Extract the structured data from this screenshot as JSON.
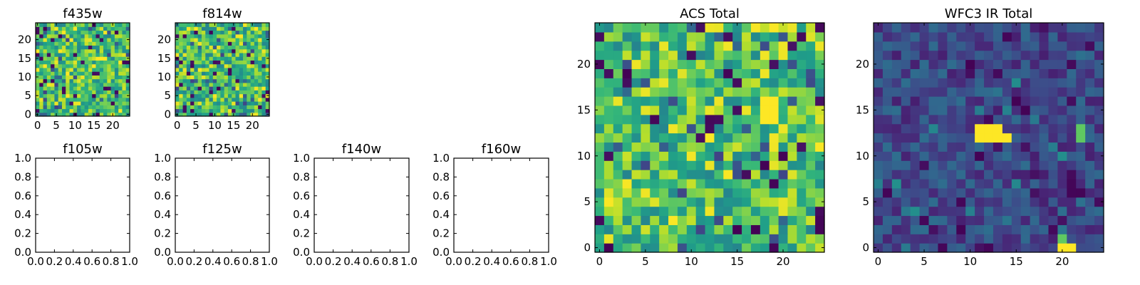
{
  "chart_data": [
    {
      "type": "heatmap",
      "title": "f435w",
      "grid_size": 25,
      "xlim": [
        -0.5,
        24.5
      ],
      "ylim": [
        -0.5,
        24.5
      ],
      "xticks": [
        0,
        5,
        10,
        15,
        20
      ],
      "yticks": [
        0,
        5,
        10,
        15,
        20
      ],
      "colormap": "viridis",
      "pattern": "noise-high",
      "seed": 11,
      "hot": [
        {
          "r": 15,
          "c": 16
        },
        {
          "r": 15,
          "c": 17
        },
        {
          "r": 15,
          "c": 18
        }
      ]
    },
    {
      "type": "heatmap",
      "title": "f814w",
      "grid_size": 25,
      "xlim": [
        -0.5,
        24.5
      ],
      "ylim": [
        -0.5,
        24.5
      ],
      "xticks": [
        0,
        5,
        10,
        15,
        20
      ],
      "yticks": [
        0,
        5,
        10,
        15,
        20
      ],
      "colormap": "viridis",
      "pattern": "noise-high",
      "seed": 23,
      "hot": []
    },
    {
      "type": "empty",
      "title": "f105w",
      "xlim": [
        0,
        1
      ],
      "ylim": [
        0,
        1
      ],
      "xticks": [
        "0.0",
        "0.2",
        "0.4",
        "0.6",
        "0.8",
        "1.0"
      ],
      "yticks": [
        "0.0",
        "0.2",
        "0.4",
        "0.6",
        "0.8",
        "1.0"
      ]
    },
    {
      "type": "empty",
      "title": "f125w",
      "xlim": [
        0,
        1
      ],
      "ylim": [
        0,
        1
      ],
      "xticks": [
        "0.0",
        "0.2",
        "0.4",
        "0.6",
        "0.8",
        "1.0"
      ],
      "yticks": [
        "0.0",
        "0.2",
        "0.4",
        "0.6",
        "0.8",
        "1.0"
      ]
    },
    {
      "type": "empty",
      "title": "f140w",
      "xlim": [
        0,
        1
      ],
      "ylim": [
        0,
        1
      ],
      "xticks": [
        "0.0",
        "0.2",
        "0.4",
        "0.6",
        "0.8",
        "1.0"
      ],
      "yticks": [
        "0.0",
        "0.2",
        "0.4",
        "0.6",
        "0.8",
        "1.0"
      ]
    },
    {
      "type": "empty",
      "title": "f160w",
      "xlim": [
        0,
        1
      ],
      "ylim": [
        0,
        1
      ],
      "xticks": [
        "0.0",
        "0.2",
        "0.4",
        "0.6",
        "0.8",
        "1.0"
      ],
      "yticks": [
        "0.0",
        "0.2",
        "0.4",
        "0.6",
        "0.8",
        "1.0"
      ]
    },
    {
      "type": "heatmap",
      "title": "ACS Total",
      "grid_size": 25,
      "xlim": [
        -0.5,
        24.5
      ],
      "ylim": [
        -0.5,
        24.5
      ],
      "xticks": [
        0,
        5,
        10,
        15,
        20
      ],
      "yticks": [
        0,
        5,
        10,
        15,
        20
      ],
      "colormap": "viridis",
      "pattern": "noise-high",
      "seed": 37,
      "hot": [
        {
          "r": 15,
          "c": 18
        },
        {
          "r": 15,
          "c": 19
        },
        {
          "r": 16,
          "c": 18
        },
        {
          "r": 16,
          "c": 19
        },
        {
          "r": 14,
          "c": 18
        },
        {
          "r": 14,
          "c": 19
        }
      ]
    },
    {
      "type": "heatmap",
      "title": "WFC3 IR Total",
      "grid_size": 25,
      "xlim": [
        -0.5,
        24.5
      ],
      "ylim": [
        -0.5,
        24.5
      ],
      "xticks": [
        0,
        5,
        10,
        15,
        20
      ],
      "yticks": [
        0,
        5,
        10,
        15,
        20
      ],
      "colormap": "viridis",
      "pattern": "noise-low",
      "seed": 53,
      "hot": [
        {
          "r": 12,
          "c": 11
        },
        {
          "r": 12,
          "c": 12
        },
        {
          "r": 12,
          "c": 13
        },
        {
          "r": 12,
          "c": 14
        },
        {
          "r": 13,
          "c": 11
        },
        {
          "r": 13,
          "c": 12
        },
        {
          "r": 13,
          "c": 13
        },
        {
          "r": 0,
          "c": 20
        },
        {
          "r": 0,
          "c": 21
        }
      ],
      "warm": [
        {
          "r": 13,
          "c": 22
        },
        {
          "r": 12,
          "c": 22
        },
        {
          "r": 1,
          "c": 20
        }
      ]
    }
  ]
}
